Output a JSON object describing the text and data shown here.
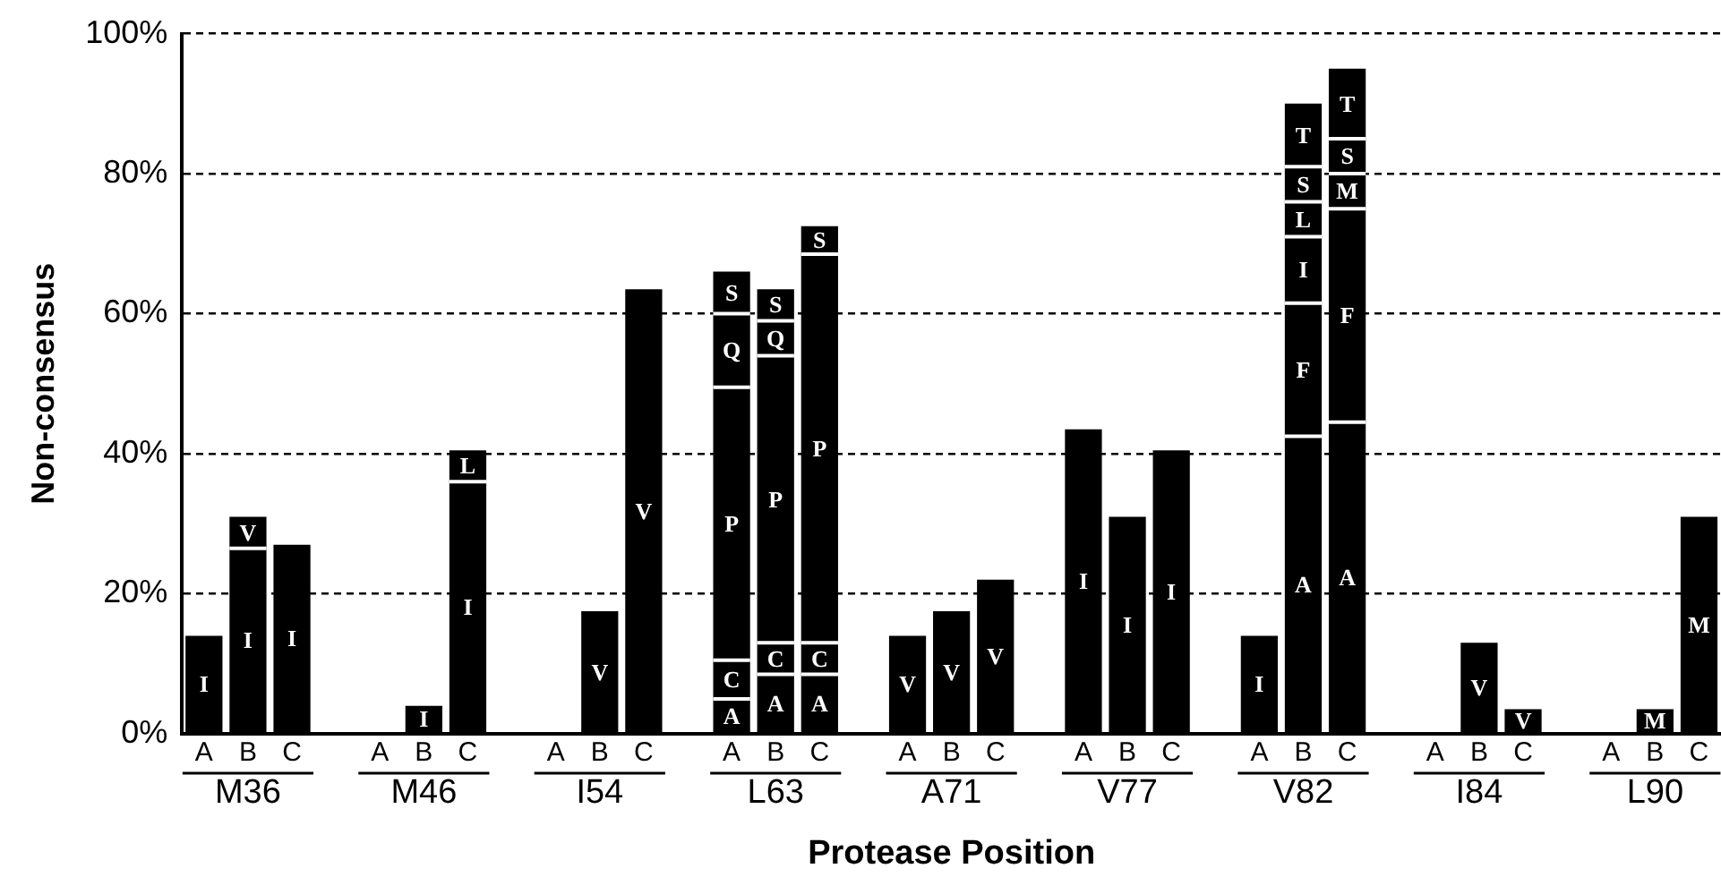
{
  "chart_data": {
    "type": "bar",
    "stacked": true,
    "ylabel": "Non-consensus",
    "xlabel": "Protease Position",
    "categories": [
      "A",
      "B",
      "C",
      null,
      "A",
      "B",
      "C",
      null,
      "A",
      "B",
      "C",
      null,
      "A",
      "B",
      "C",
      null,
      "A",
      "B",
      "C",
      null,
      "A",
      "B",
      "C",
      null,
      "A",
      "B",
      "C",
      null,
      "A",
      "B",
      "C",
      null,
      "A",
      "B",
      "C"
    ],
    "annotations": [
      "M36",
      "M46",
      "I54",
      "L63",
      "A71",
      "V77",
      "V82",
      "I84",
      "L90"
    ],
    "ylim": [
      0,
      100
    ],
    "yticks": [
      {
        "value": 0,
        "label": "0%"
      },
      {
        "value": 20,
        "label": "20%"
      },
      {
        "value": 40,
        "label": "40%"
      },
      {
        "value": 60,
        "label": "60%"
      },
      {
        "value": 80,
        "label": "80%"
      },
      {
        "value": 100,
        "label": "100%"
      }
    ],
    "grid": "y",
    "legend": false,
    "series": [
      {
        "color": "#000000",
        "values": [
          14,
          26.5,
          27,
          null,
          null,
          4,
          36,
          null,
          null,
          17.5,
          63.5,
          null,
          5,
          8.5,
          8.5,
          null,
          14,
          17.5,
          22,
          null,
          43.5,
          31,
          40.5,
          null,
          14,
          42.5,
          44.5,
          null,
          null,
          13,
          3.5,
          null,
          null,
          3.5,
          31
        ],
        "value_labels": [
          "I",
          "I",
          "I",
          null,
          null,
          "I",
          "I",
          null,
          null,
          "V",
          "V",
          null,
          "A",
          "A",
          "A",
          null,
          "V",
          "V",
          "V",
          null,
          "I",
          "I",
          "I",
          null,
          "I",
          "A",
          "A",
          null,
          null,
          "V",
          "V",
          null,
          null,
          "M",
          "M"
        ]
      },
      {
        "color": "#000000",
        "values": [
          null,
          4.5,
          null,
          null,
          null,
          null,
          4.5,
          null,
          null,
          null,
          null,
          null,
          5.5,
          4.5,
          4.5,
          null,
          null,
          null,
          null,
          null,
          null,
          null,
          null,
          null,
          null,
          19,
          30.5,
          null,
          null,
          null,
          null,
          null,
          null,
          null,
          null
        ],
        "value_labels": [
          null,
          "V",
          null,
          null,
          null,
          null,
          "L",
          null,
          null,
          null,
          null,
          null,
          "C",
          "C",
          "C",
          null,
          null,
          null,
          null,
          null,
          null,
          null,
          null,
          null,
          null,
          "F",
          "F",
          null,
          null,
          null,
          null,
          null,
          null,
          null,
          null
        ]
      },
      {
        "color": "#000000",
        "values": [
          null,
          null,
          null,
          null,
          null,
          null,
          null,
          null,
          null,
          null,
          null,
          null,
          39,
          41,
          55.5,
          null,
          null,
          null,
          null,
          null,
          null,
          null,
          null,
          null,
          null,
          9.5,
          5,
          null,
          null,
          null,
          null,
          null,
          null,
          null,
          null
        ],
        "value_labels": [
          null,
          null,
          null,
          null,
          null,
          null,
          null,
          null,
          null,
          null,
          null,
          null,
          "P",
          "P",
          "P",
          null,
          null,
          null,
          null,
          null,
          null,
          null,
          null,
          null,
          null,
          "I",
          "M",
          null,
          null,
          null,
          null,
          null,
          null,
          null,
          null
        ]
      },
      {
        "color": "#000000",
        "values": [
          null,
          null,
          null,
          null,
          null,
          null,
          null,
          null,
          null,
          null,
          null,
          null,
          10.5,
          5,
          4,
          null,
          null,
          null,
          null,
          null,
          null,
          null,
          null,
          null,
          null,
          5,
          5,
          null,
          null,
          null,
          null,
          null,
          null,
          null,
          null
        ],
        "value_labels": [
          null,
          null,
          null,
          null,
          null,
          null,
          null,
          null,
          null,
          null,
          null,
          null,
          "Q",
          "Q",
          "S",
          null,
          null,
          null,
          null,
          null,
          null,
          null,
          null,
          null,
          null,
          "L",
          "S",
          null,
          null,
          null,
          null,
          null,
          null,
          null,
          null
        ]
      },
      {
        "color": "#000000",
        "values": [
          null,
          null,
          null,
          null,
          null,
          null,
          null,
          null,
          null,
          null,
          null,
          null,
          6,
          4.5,
          null,
          null,
          null,
          null,
          null,
          null,
          null,
          null,
          null,
          null,
          null,
          5,
          10,
          null,
          null,
          null,
          null,
          null,
          null,
          null,
          null
        ],
        "value_labels": [
          null,
          null,
          null,
          null,
          null,
          null,
          null,
          null,
          null,
          null,
          null,
          null,
          "S",
          "S",
          null,
          null,
          null,
          null,
          null,
          null,
          null,
          null,
          null,
          null,
          null,
          "S",
          "T",
          null,
          null,
          null,
          null,
          null,
          null,
          null,
          null
        ]
      },
      {
        "color": "#000000",
        "values": [
          null,
          null,
          null,
          null,
          null,
          null,
          null,
          null,
          null,
          null,
          null,
          null,
          null,
          null,
          null,
          null,
          null,
          null,
          null,
          null,
          null,
          null,
          null,
          null,
          null,
          9,
          null,
          null,
          null,
          null,
          null,
          null,
          null,
          null,
          null
        ],
        "value_labels": [
          null,
          null,
          null,
          null,
          null,
          null,
          null,
          null,
          null,
          null,
          null,
          null,
          null,
          null,
          null,
          null,
          null,
          null,
          null,
          null,
          null,
          null,
          null,
          null,
          null,
          "T",
          null,
          null,
          null,
          null,
          null,
          null,
          null,
          null,
          null
        ]
      }
    ]
  }
}
